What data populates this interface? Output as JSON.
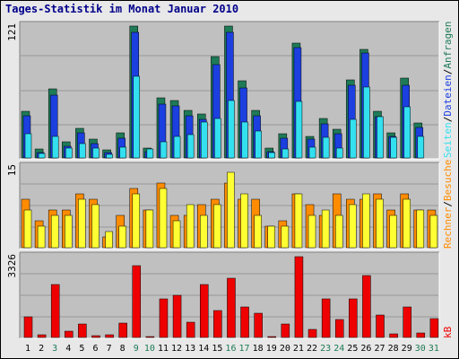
{
  "title": "Tages-Statistik im Monat Januar 2010",
  "colors": {
    "anfragen": "#1e7a57",
    "dateien": "#1c3fe0",
    "seiten": "#33e0f0",
    "besuche": "#ff8c00",
    "rechner": "#ffff33",
    "kb": "#ee0000",
    "weekday_tick": "#000000",
    "weekend_tick": "#1e7a57"
  },
  "right_labels": {
    "top": {
      "anfragen": "Anfragen",
      "sep1": "/",
      "dateien": "Dateien",
      "sep2": "/",
      "seiten": "Seiten"
    },
    "middle": {
      "besuche": "Besuche",
      "sep": "/",
      "rechner": "Rechner"
    },
    "bottom": {
      "kb": "kB"
    }
  },
  "chart_data": [
    {
      "type": "bar",
      "panel": "top",
      "title": "",
      "ylabel": "121",
      "ylim": [
        0,
        121
      ],
      "categories": [
        "1",
        "2",
        "3",
        "4",
        "5",
        "6",
        "7",
        "8",
        "9",
        "10",
        "11",
        "12",
        "13",
        "14",
        "15",
        "16",
        "17",
        "18",
        "19",
        "20",
        "21",
        "22",
        "23",
        "24",
        "25",
        "26",
        "27",
        "28",
        "29",
        "30",
        "31"
      ],
      "series": [
        {
          "name": "Anfragen",
          "values": [
            43,
            8,
            63,
            15,
            27,
            17,
            7,
            23,
            121,
            9,
            55,
            53,
            44,
            40,
            93,
            121,
            71,
            44,
            9,
            22,
            105,
            20,
            36,
            26,
            72,
            100,
            43,
            23,
            73,
            32,
            0
          ]
        },
        {
          "name": "Dateien",
          "values": [
            39,
            5,
            58,
            11,
            23,
            13,
            5,
            18,
            115,
            6,
            49,
            48,
            39,
            35,
            86,
            115,
            64,
            39,
            6,
            18,
            101,
            17,
            31,
            22,
            67,
            96,
            38,
            20,
            67,
            28,
            0
          ]
        },
        {
          "name": "Seiten",
          "values": [
            22,
            4,
            20,
            9,
            13,
            9,
            3,
            10,
            75,
            8,
            15,
            20,
            21,
            33,
            36,
            53,
            33,
            25,
            5,
            8,
            52,
            10,
            19,
            9,
            35,
            65,
            38,
            19,
            47,
            20,
            0
          ]
        }
      ]
    },
    {
      "type": "bar",
      "panel": "middle",
      "title": "",
      "ylabel": "15",
      "ylim": [
        0,
        15
      ],
      "categories": [
        "1",
        "2",
        "3",
        "4",
        "5",
        "6",
        "7",
        "8",
        "9",
        "10",
        "11",
        "12",
        "13",
        "14",
        "15",
        "16",
        "17",
        "18",
        "19",
        "20",
        "21",
        "22",
        "23",
        "24",
        "25",
        "26",
        "27",
        "28",
        "29",
        "30",
        "31"
      ],
      "series": [
        {
          "name": "Besuche",
          "values": [
            9,
            5,
            7,
            7,
            10,
            9,
            2,
            6,
            11,
            7,
            12,
            6,
            6,
            8,
            9,
            12,
            9,
            9,
            4,
            5,
            10,
            8,
            6,
            10,
            9,
            9,
            10,
            7,
            10,
            7,
            7
          ]
        },
        {
          "name": "Rechner",
          "values": [
            7,
            4,
            6,
            6,
            9,
            8,
            3,
            4,
            10,
            7,
            11,
            5,
            8,
            6,
            8,
            14,
            10,
            6,
            4,
            4,
            10,
            6,
            7,
            6,
            8,
            10,
            9,
            6,
            9,
            7,
            6
          ]
        }
      ]
    },
    {
      "type": "bar",
      "panel": "bottom",
      "title": "",
      "ylabel": "3326",
      "ylim": [
        0,
        3326
      ],
      "categories": [
        "1",
        "2",
        "3",
        "4",
        "5",
        "6",
        "7",
        "8",
        "9",
        "10",
        "11",
        "12",
        "13",
        "14",
        "15",
        "16",
        "17",
        "18",
        "19",
        "20",
        "21",
        "22",
        "23",
        "24",
        "25",
        "26",
        "27",
        "28",
        "29",
        "30",
        "31"
      ],
      "series": [
        {
          "name": "kB",
          "values": [
            860,
            110,
            2180,
            260,
            550,
            90,
            120,
            580,
            2960,
            50,
            1580,
            1750,
            630,
            2180,
            1120,
            2450,
            1260,
            990,
            35,
            570,
            3326,
            330,
            1580,
            750,
            1590,
            2550,
            910,
            130,
            1260,
            200,
            790
          ]
        }
      ]
    }
  ]
}
